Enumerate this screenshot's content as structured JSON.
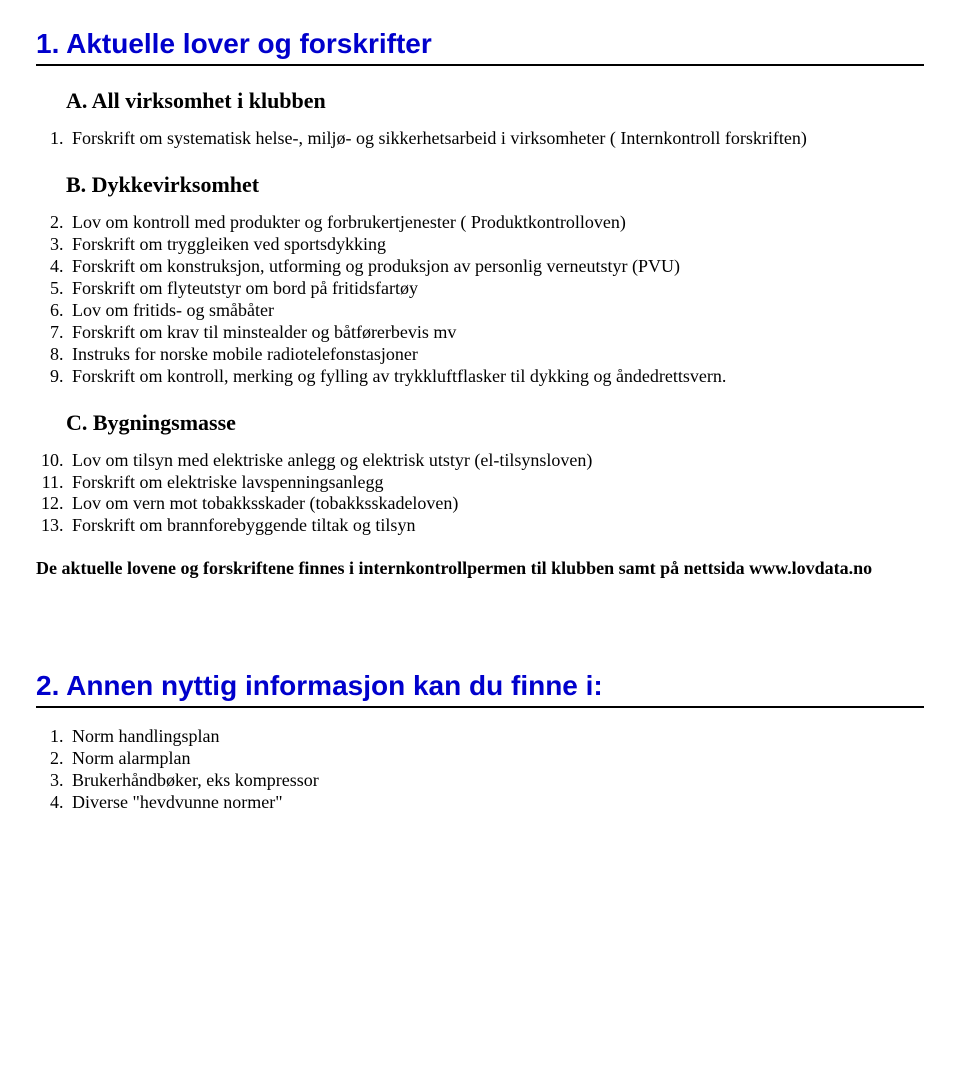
{
  "section1": {
    "title": "1. Aktuelle lover og forskrifter",
    "subA": "A. All virksomhet i klubben",
    "listA": [
      "Forskrift om systematisk helse-, miljø- og sikkerhetsarbeid i virksomheter ( Internkontroll forskriften)"
    ],
    "subB": "B. Dykkevirksomhet",
    "listB": [
      "Lov om kontroll med produkter og forbrukertjenester ( Produktkontrolloven)",
      "Forskrift om tryggleiken ved sportsdykking",
      "Forskrift om konstruksjon, utforming og produksjon av personlig verneutstyr (PVU)",
      "Forskrift om flyteutstyr om bord på fritidsfartøy",
      "Lov om fritids- og småbåter",
      "Forskrift om krav til minstealder og båtførerbevis mv",
      "Instruks for norske mobile radiotelefonstasjoner",
      "Forskrift om kontroll, merking og fylling av trykkluftflasker til dykking og åndedrettsvern."
    ],
    "subC": "C. Bygningsmasse",
    "listC": [
      "Lov om tilsyn med elektriske anlegg og elektrisk utstyr (el-tilsynsloven)",
      "Forskrift om elektriske lavspenningsanlegg",
      "Lov om vern mot tobakksskader (tobakksskadeloven)",
      "Forskrift om brannforebyggende tiltak og tilsyn"
    ],
    "footer": "De aktuelle lovene og forskriftene finnes i internkontrollpermen til klubben samt på nettsida www.lovdata.no"
  },
  "section2": {
    "title": "2. Annen nyttig informasjon kan du finne i:",
    "list": [
      "Norm handlingsplan",
      "Norm alarmplan",
      "Brukerhåndbøker, eks kompressor",
      "Diverse \"hevdvunne normer\""
    ]
  }
}
